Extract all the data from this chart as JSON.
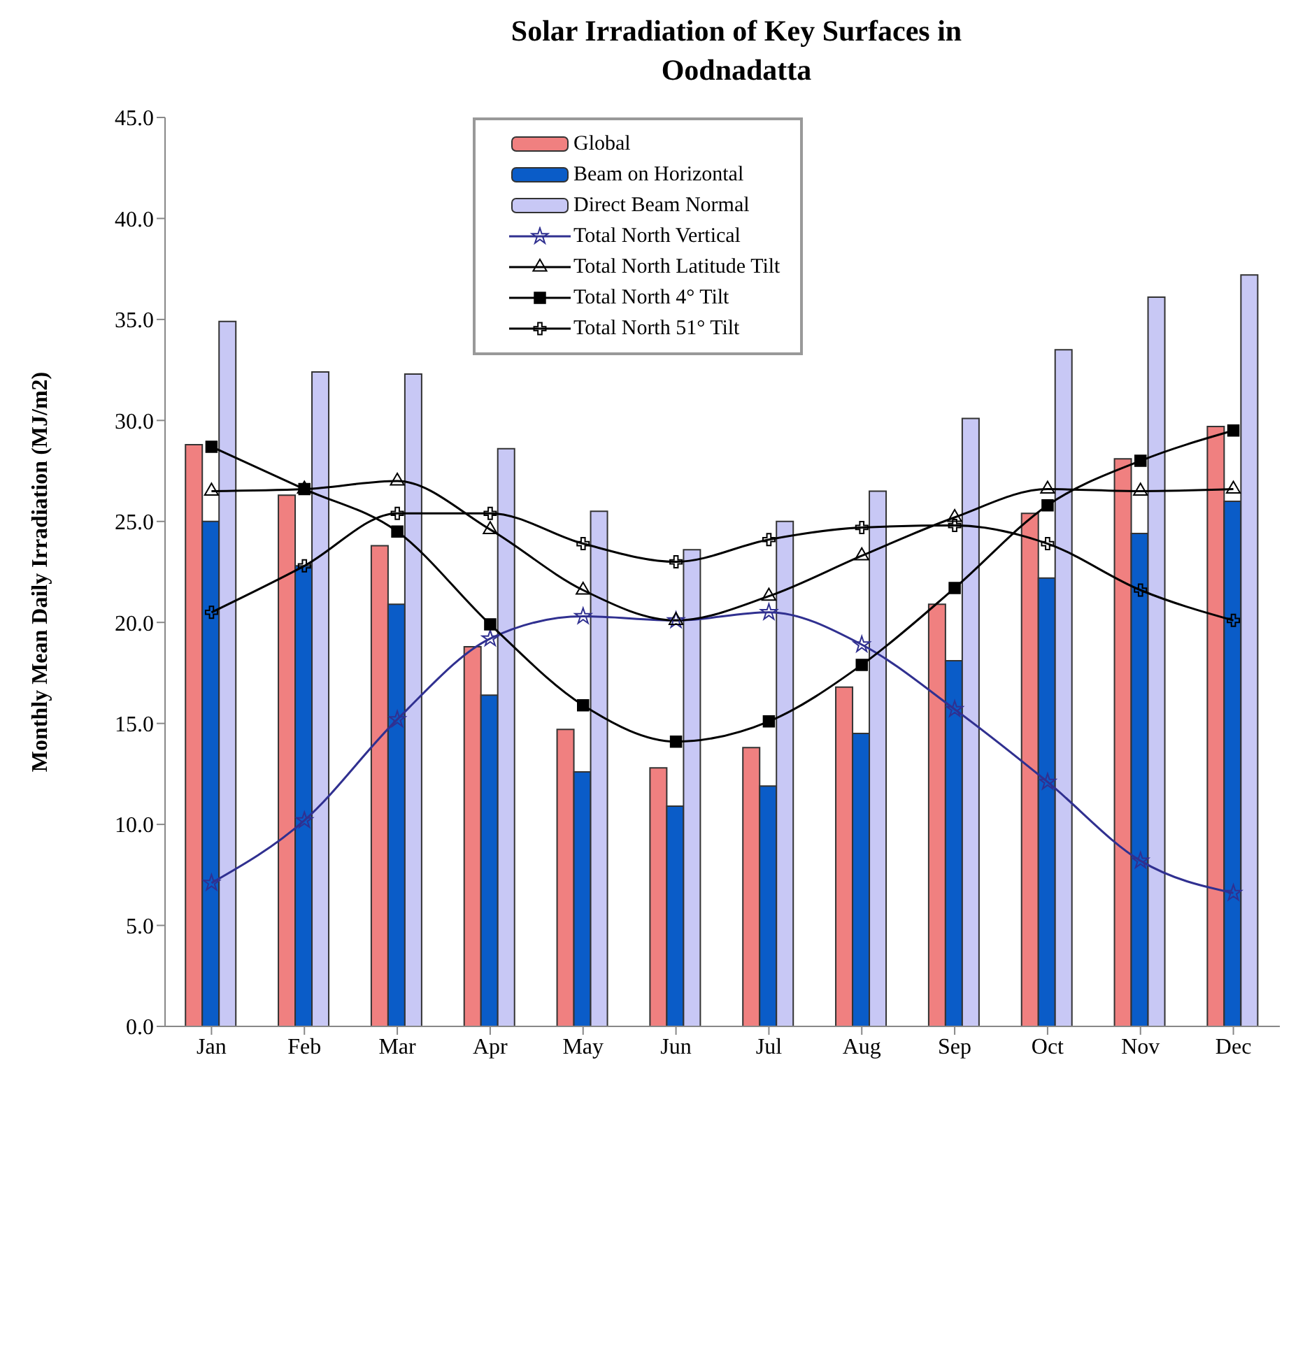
{
  "chart_data": {
    "type": "bar",
    "title": "Solar Irradiation of Key Surfaces in Oodnadatta",
    "ylabel": "Monthly Mean Daily Irradiation (MJ/m2)",
    "categories": [
      "Jan",
      "Feb",
      "Mar",
      "Apr",
      "May",
      "Jun",
      "Jul",
      "Aug",
      "Sep",
      "Oct",
      "Nov",
      "Dec"
    ],
    "series": [
      {
        "name": "Global",
        "color": "#f08080",
        "values": [
          28.8,
          26.3,
          23.8,
          18.8,
          14.7,
          12.8,
          13.8,
          16.8,
          20.9,
          25.4,
          28.1,
          29.7
        ]
      },
      {
        "name": "Beam on Horizontal",
        "color": "#0a5cc8",
        "values": [
          25.0,
          22.8,
          20.9,
          16.4,
          12.6,
          10.9,
          11.9,
          14.5,
          18.1,
          22.2,
          24.4,
          26.0
        ]
      },
      {
        "name": "Direct Beam Normal",
        "color": "#c8c8f5",
        "values": [
          34.9,
          32.4,
          32.3,
          28.6,
          25.5,
          23.6,
          25.0,
          26.5,
          30.1,
          33.5,
          36.1,
          37.2
        ]
      },
      {
        "name": "Total North Vertical",
        "type": "line",
        "color": "#303090",
        "marker": "star",
        "values": [
          7.1,
          10.2,
          15.2,
          19.2,
          20.3,
          20.1,
          20.5,
          18.9,
          15.7,
          12.1,
          8.2,
          6.6
        ]
      },
      {
        "name": "Total North Latitude Tilt",
        "type": "line",
        "color": "#000000",
        "marker": "triangle",
        "values": [
          26.5,
          26.6,
          27.0,
          24.6,
          21.6,
          20.1,
          21.3,
          23.3,
          25.2,
          26.6,
          26.5,
          26.6
        ]
      },
      {
        "name": "Total North 4° Tilt",
        "type": "line",
        "color": "#000000",
        "marker": "square",
        "values": [
          28.7,
          26.6,
          24.5,
          19.9,
          15.9,
          14.1,
          15.1,
          17.9,
          21.7,
          25.8,
          28.0,
          29.5
        ]
      },
      {
        "name": "Total North 51° Tilt",
        "type": "line",
        "color": "#000000",
        "marker": "cross",
        "values": [
          20.5,
          22.8,
          25.4,
          25.4,
          23.9,
          23.0,
          24.1,
          24.7,
          24.8,
          23.9,
          21.6,
          20.1
        ]
      }
    ],
    "ylim": [
      0,
      45
    ],
    "yticks": [
      {
        "value": 0,
        "label": "0.0"
      },
      {
        "value": 5,
        "label": "5.0"
      },
      {
        "value": 10,
        "label": "10.0"
      },
      {
        "value": 15,
        "label": "15.0"
      },
      {
        "value": 20,
        "label": "20.0"
      },
      {
        "value": 25,
        "label": "25.0"
      },
      {
        "value": 30,
        "label": "30.0"
      },
      {
        "value": 35,
        "label": "35.0"
      },
      {
        "value": 40,
        "label": "40.0"
      },
      {
        "value": 45,
        "label": "45.0"
      }
    ],
    "grid": false,
    "legend": "top"
  }
}
